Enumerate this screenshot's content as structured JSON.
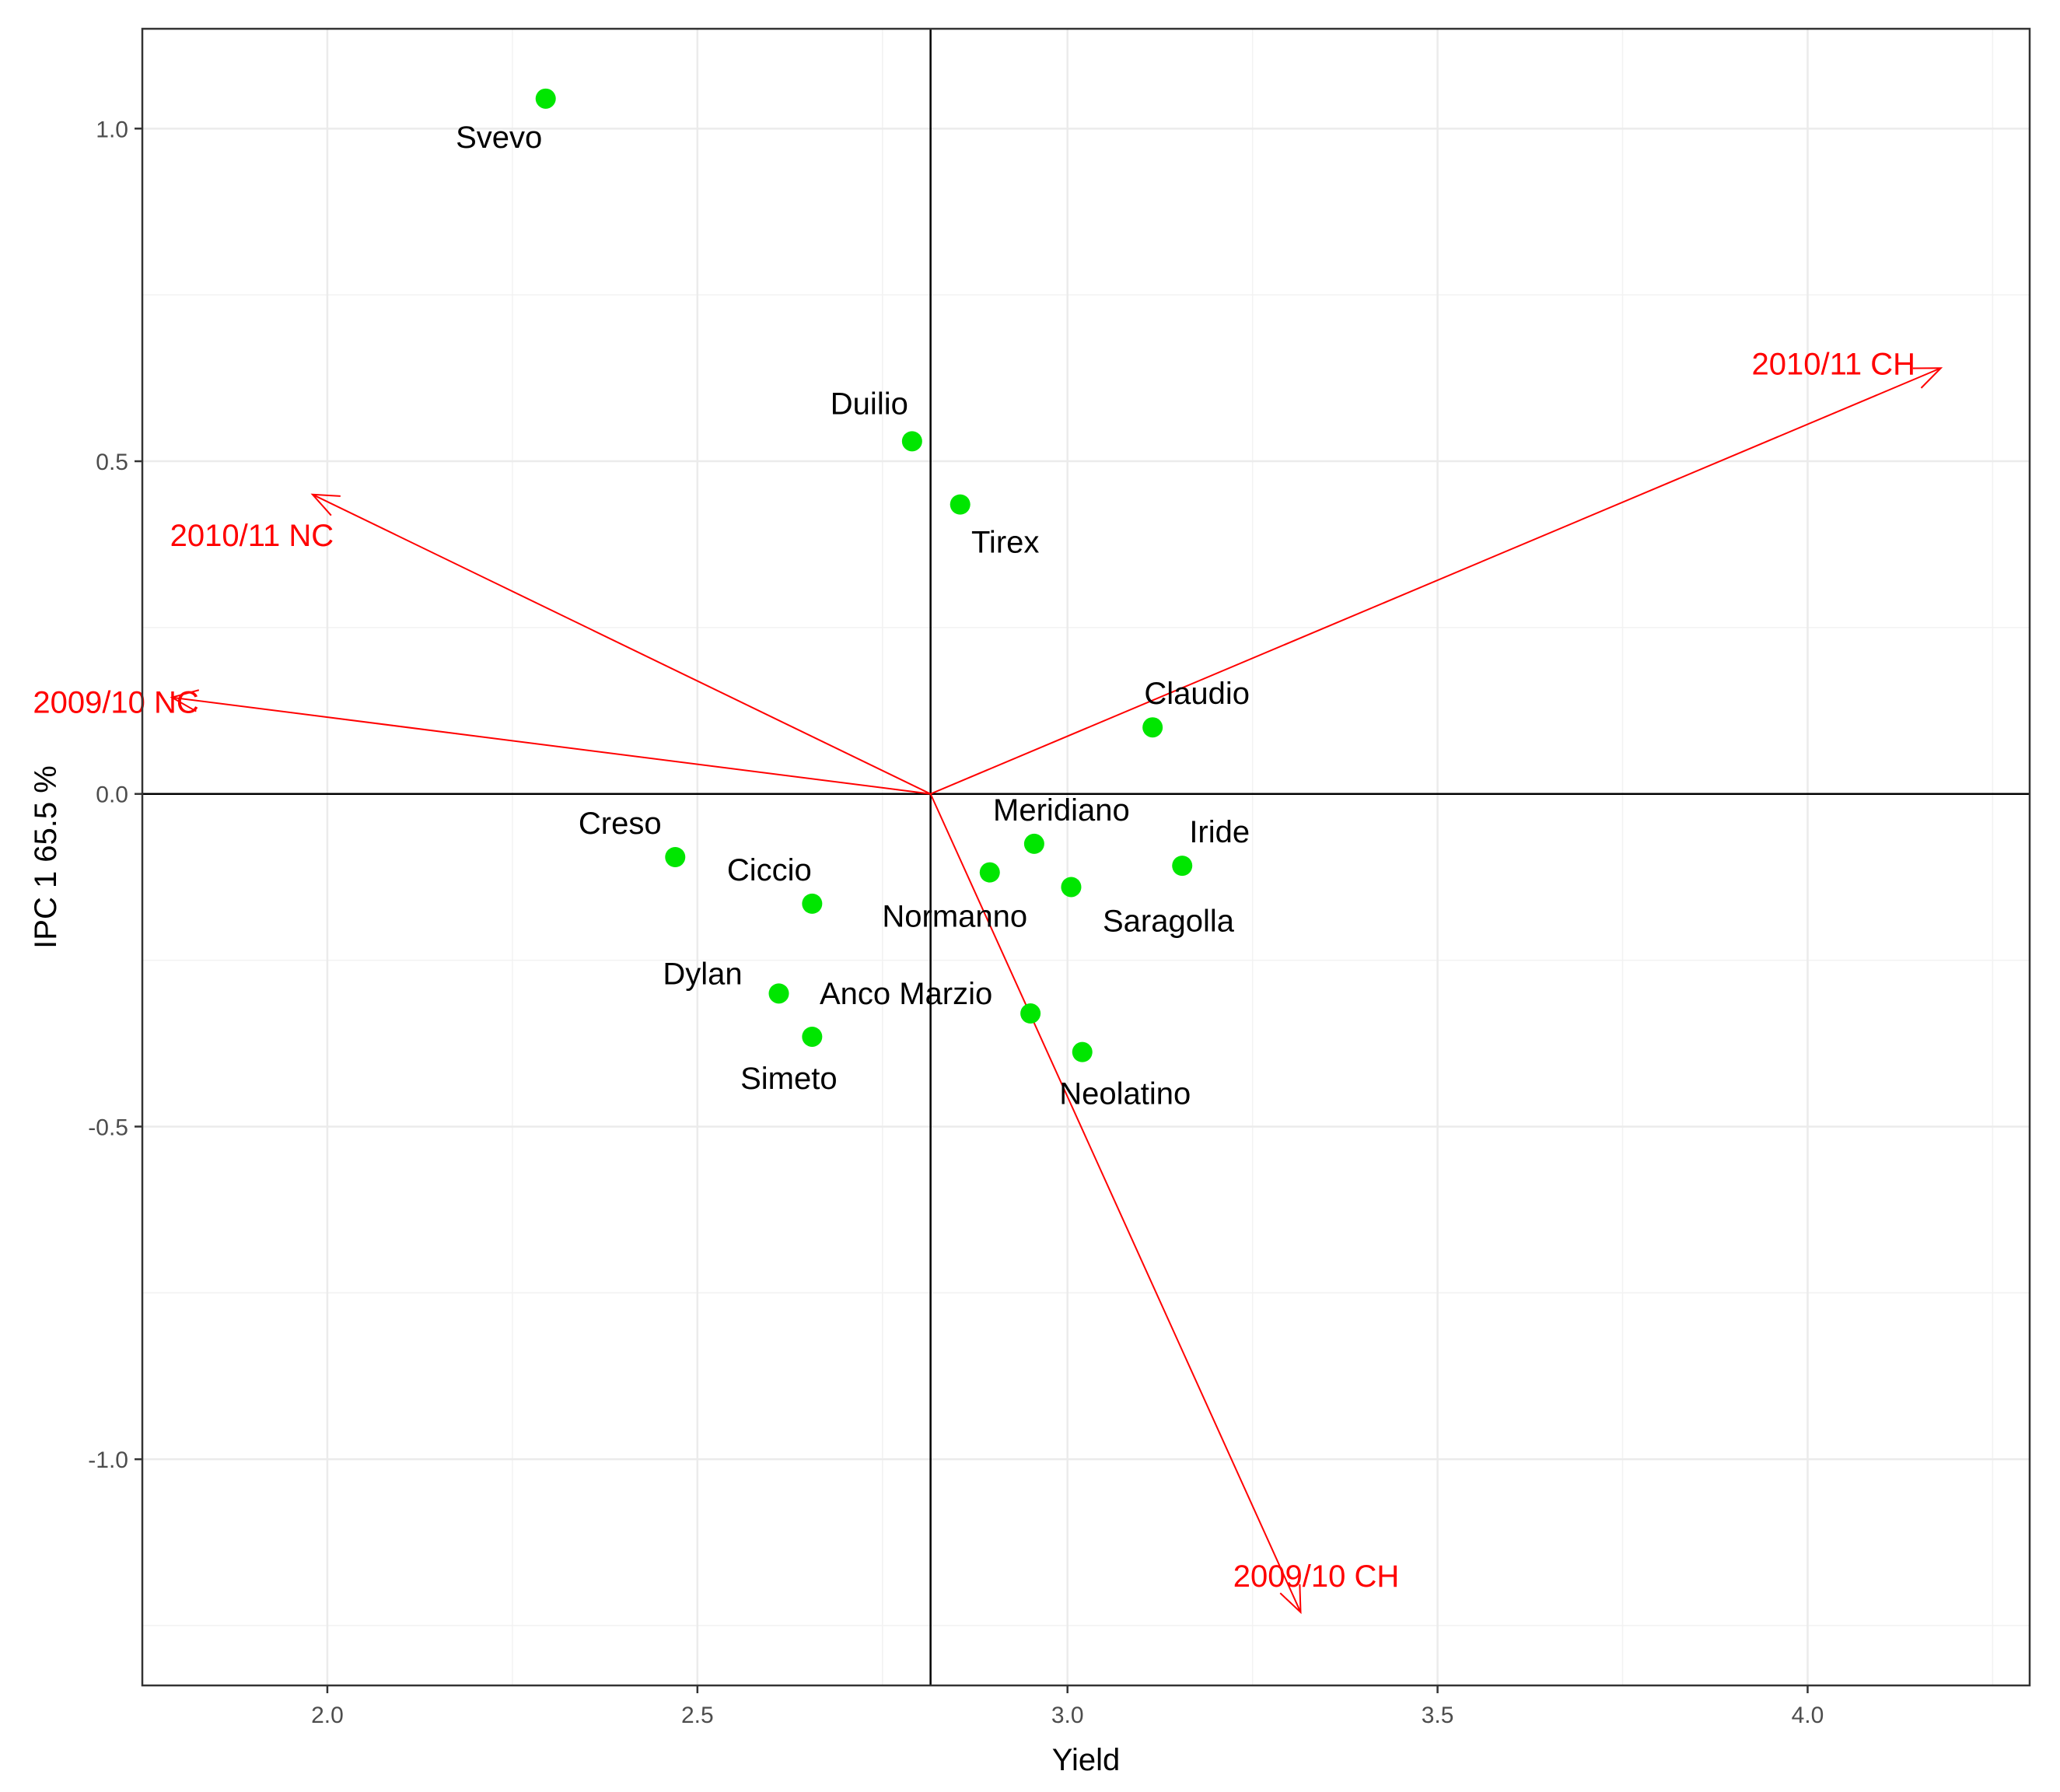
{
  "chart_data": {
    "type": "scatter",
    "subtype": "biplot",
    "title": "",
    "xlabel": "Yield",
    "ylabel": "IPC 1 65.5 %",
    "xlim": [
      1.75,
      4.3
    ],
    "ylim": [
      -1.34,
      1.15
    ],
    "x_ticks": [
      2.0,
      2.5,
      3.0,
      3.5,
      4.0
    ],
    "x_tick_labels": [
      "2.0",
      "2.5",
      "3.0",
      "3.5",
      "4.0"
    ],
    "y_ticks": [
      1.0,
      0.5,
      0.0,
      -0.5,
      -1.0
    ],
    "y_tick_labels": [
      "1.0",
      "0.5",
      "0.0",
      "-0.5",
      "-1.0"
    ],
    "grid": true,
    "origin": [
      2.815,
      0.0
    ],
    "point_color": "#00e600",
    "vector_color": "#ff0000",
    "points": [
      {
        "name": "Svevo",
        "x": 2.295,
        "y": 1.045,
        "label_anchor": "below"
      },
      {
        "name": "Duilio",
        "x": 2.79,
        "y": 0.53,
        "label_anchor": "upper-left"
      },
      {
        "name": "Tirex",
        "x": 2.855,
        "y": 0.435,
        "label_anchor": "below-right"
      },
      {
        "name": "Claudio",
        "x": 3.115,
        "y": 0.1,
        "label_anchor": "upper-right"
      },
      {
        "name": "Meridiano",
        "x": 2.955,
        "y": -0.075,
        "label_anchor": "above"
      },
      {
        "name": "Iride",
        "x": 3.155,
        "y": -0.108,
        "label_anchor": "upper-right"
      },
      {
        "name": "Normanno",
        "x": 2.895,
        "y": -0.118,
        "label_anchor": "below-left"
      },
      {
        "name": "Saragolla",
        "x": 3.005,
        "y": -0.14,
        "label_anchor": "below-right"
      },
      {
        "name": "Creso",
        "x": 2.47,
        "y": -0.095,
        "label_anchor": "upper-left"
      },
      {
        "name": "Ciccio",
        "x": 2.655,
        "y": -0.165,
        "label_anchor": "upper-left"
      },
      {
        "name": "Dylan",
        "x": 2.61,
        "y": -0.3,
        "label_anchor": "left"
      },
      {
        "name": "Anco Marzio",
        "x": 2.95,
        "y": -0.33,
        "label_anchor": "left"
      },
      {
        "name": "Simeto",
        "x": 2.655,
        "y": -0.365,
        "label_anchor": "below"
      },
      {
        "name": "Neolatino",
        "x": 3.02,
        "y": -0.388,
        "label_anchor": "below-right"
      }
    ],
    "vectors": [
      {
        "name": "2010/11 CH",
        "x": 4.18,
        "y": 0.64
      },
      {
        "name": "2010/11 NC",
        "x": 1.98,
        "y": 0.45
      },
      {
        "name": "2009/10 NC",
        "x": 1.79,
        "y": 0.145
      },
      {
        "name": "2009/10 CH",
        "x": 3.315,
        "y": -1.23
      }
    ]
  }
}
